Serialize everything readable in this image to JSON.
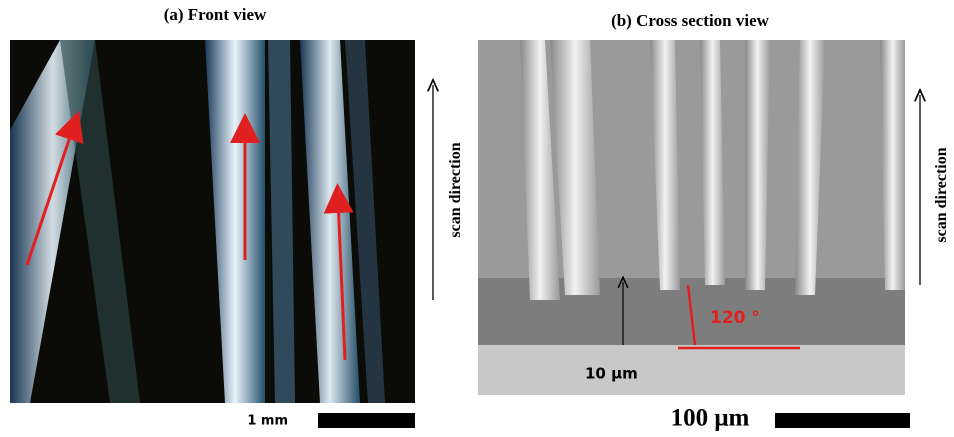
{
  "panels": {
    "a": {
      "title": "(a) Front view",
      "side_label": "scan direction",
      "scale_label": "1 mm"
    },
    "b": {
      "title": "(b) Cross section view",
      "side_label": "scan direction",
      "scale_label": "100 μm",
      "annotations": {
        "thickness": "10 μm",
        "angle": "120 °"
      }
    }
  }
}
